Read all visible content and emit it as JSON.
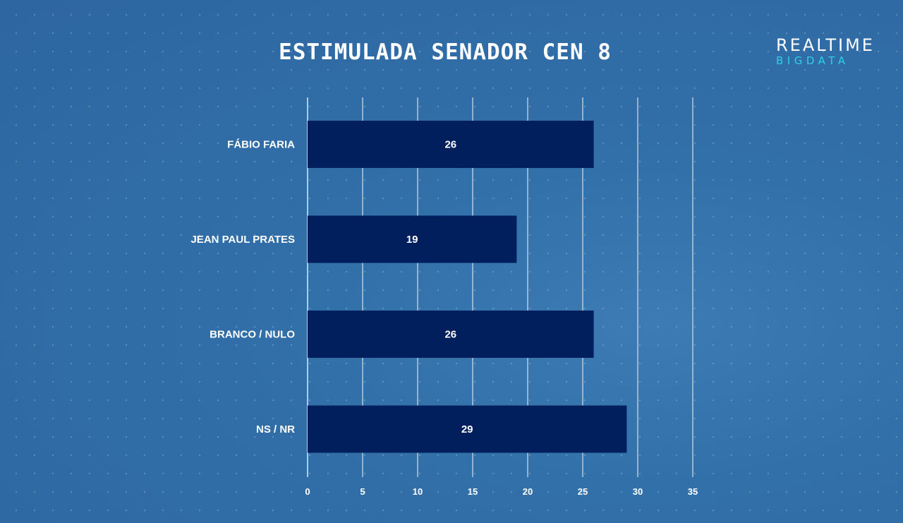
{
  "header": {
    "title": "ESTIMULADA SENADOR CEN 8"
  },
  "logo": {
    "top": "REALTIME",
    "bottom": "BIGDATA"
  },
  "colors": {
    "bar": "#001f5c",
    "grid": "#d8e3ee",
    "logo_accent": "#2fd0e6"
  },
  "chart_data": {
    "type": "bar",
    "orientation": "horizontal",
    "title": "ESTIMULADA SENADOR CEN 8",
    "categories": [
      "FÁBIO FARIA",
      "JEAN PAUL PRATES",
      "BRANCO / NULO",
      "NS / NR"
    ],
    "values": [
      26,
      19,
      26,
      29
    ],
    "data_labels": [
      "26",
      "19",
      "26",
      "29"
    ],
    "xlim": [
      0,
      35
    ],
    "xticks": [
      0,
      5,
      10,
      15,
      20,
      25,
      30,
      35
    ],
    "xtick_labels": [
      "0",
      "5",
      "10",
      "15",
      "20",
      "25",
      "30",
      "35"
    ],
    "grid": true,
    "legend": "none"
  }
}
